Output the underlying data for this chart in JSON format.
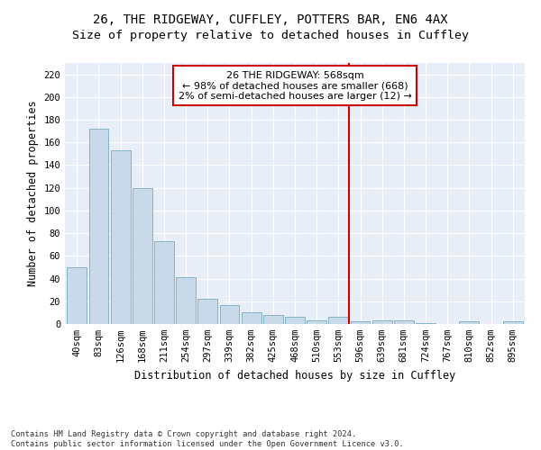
{
  "title1": "26, THE RIDGEWAY, CUFFLEY, POTTERS BAR, EN6 4AX",
  "title2": "Size of property relative to detached houses in Cuffley",
  "xlabel": "Distribution of detached houses by size in Cuffley",
  "ylabel": "Number of detached properties",
  "bar_color": "#c8daea",
  "bar_edge_color": "#7aaabf",
  "categories": [
    "40sqm",
    "83sqm",
    "126sqm",
    "168sqm",
    "211sqm",
    "254sqm",
    "297sqm",
    "339sqm",
    "382sqm",
    "425sqm",
    "468sqm",
    "510sqm",
    "553sqm",
    "596sqm",
    "639sqm",
    "681sqm",
    "724sqm",
    "767sqm",
    "810sqm",
    "852sqm",
    "895sqm"
  ],
  "values": [
    50,
    172,
    153,
    120,
    73,
    41,
    22,
    17,
    10,
    8,
    6,
    3,
    6,
    2,
    3,
    3,
    1,
    0,
    2,
    0,
    2
  ],
  "vline_index": 12,
  "vline_color": "#cc0000",
  "annotation_text": "26 THE RIDGEWAY: 568sqm\n← 98% of detached houses are smaller (668)\n2% of semi-detached houses are larger (12) →",
  "annotation_box_color": "#ffffff",
  "annotation_box_edge": "#cc0000",
  "ylim": [
    0,
    230
  ],
  "yticks": [
    0,
    20,
    40,
    60,
    80,
    100,
    120,
    140,
    160,
    180,
    200,
    220
  ],
  "bg_color": "#e8eef8",
  "footer": "Contains HM Land Registry data © Crown copyright and database right 2024.\nContains public sector information licensed under the Open Government Licence v3.0.",
  "title_fontsize": 10,
  "subtitle_fontsize": 9.5,
  "axis_label_fontsize": 8.5,
  "tick_fontsize": 7.5,
  "annotation_fontsize": 8
}
